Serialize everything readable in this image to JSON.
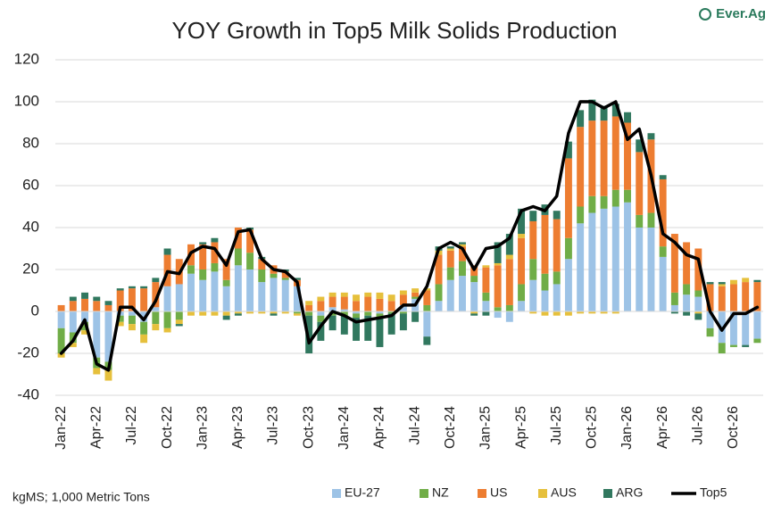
{
  "chart_data": {
    "type": "bar",
    "stacked": true,
    "title": "YOY Growth in Top5 Milk Solids Production",
    "logo": "Ever.Ag",
    "note": "kgMS; 1,000 Metric Tons",
    "categories": [
      "Jan-22",
      null,
      null,
      "Apr-22",
      null,
      null,
      "Jul-22",
      null,
      null,
      "Oct-22",
      null,
      null,
      "Jan-23",
      null,
      null,
      "Apr-23",
      null,
      null,
      "Jul-23",
      null,
      null,
      "Oct-23",
      null,
      null,
      "Jan-24",
      null,
      null,
      "Apr-24",
      null,
      null,
      "Jul-24",
      null,
      null,
      "Oct-24",
      null,
      null,
      "Jan-25",
      null,
      null,
      "Apr-25",
      null,
      null,
      "Jul-25",
      null,
      null,
      "Oct-25",
      null,
      null,
      "Jan-26",
      null,
      null,
      "Apr-26",
      null,
      null,
      "Jul-26",
      null,
      null,
      "Oct-26",
      null,
      null
    ],
    "ylim": [
      -40,
      120
    ],
    "yticks": [
      -40,
      -20,
      0,
      20,
      40,
      60,
      80,
      100,
      120
    ],
    "grid": true,
    "series": [
      {
        "name": "EU-27",
        "color": "#9dc3e6",
        "values": [
          -8,
          -10,
          -5,
          -22,
          -24,
          -2,
          -2,
          -5,
          2,
          12,
          13,
          18,
          15,
          19,
          12,
          22,
          20,
          14,
          16,
          15,
          12,
          0,
          -2,
          2,
          1,
          -1,
          0,
          -1,
          0,
          3,
          6,
          -12,
          5,
          15,
          17,
          14,
          5,
          -3,
          -5,
          5,
          15,
          10,
          13,
          25,
          42,
          47,
          49,
          50,
          52,
          40,
          40,
          26,
          3,
          8,
          7,
          -8,
          -15,
          -16,
          -16,
          -13
        ]
      },
      {
        "name": "NZ",
        "color": "#70ad47",
        "values": [
          -12,
          -5,
          -4,
          -5,
          -4,
          -3,
          -4,
          -6,
          -6,
          -8,
          -4,
          4,
          5,
          4,
          3,
          8,
          8,
          6,
          2,
          1,
          -1,
          -2,
          -3,
          -2,
          -2,
          -2,
          -2,
          -2,
          -1,
          -1,
          1,
          3,
          8,
          6,
          7,
          3,
          4,
          2,
          3,
          8,
          10,
          8,
          6,
          10,
          8,
          8,
          6,
          8,
          6,
          6,
          7,
          5,
          6,
          5,
          3,
          -4,
          -5,
          -1,
          0,
          -2
        ]
      },
      {
        "name": "US",
        "color": "#ed7d31",
        "values": [
          3,
          5,
          6,
          5,
          3,
          10,
          11,
          11,
          12,
          15,
          12,
          10,
          12,
          10,
          10,
          10,
          11,
          5,
          4,
          3,
          3,
          3,
          5,
          5,
          6,
          5,
          7,
          6,
          5,
          5,
          2,
          7,
          14,
          8,
          7,
          5,
          12,
          20,
          22,
          22,
          18,
          28,
          25,
          38,
          38,
          36,
          36,
          35,
          32,
          30,
          35,
          32,
          28,
          20,
          20,
          13,
          12,
          13,
          14,
          14
        ]
      },
      {
        "name": "AUS",
        "color": "#e6c03c",
        "values": [
          -2,
          -2,
          -2,
          -3,
          -5,
          -2,
          -3,
          -4,
          -3,
          -2,
          -2,
          -2,
          -2,
          -2,
          -2,
          -1,
          -1,
          -1,
          -1,
          -1,
          -1,
          2,
          2,
          2,
          2,
          3,
          2,
          3,
          3,
          2,
          2,
          1,
          2,
          1,
          1,
          -1,
          1,
          1,
          2,
          2,
          -1,
          -2,
          -2,
          -2,
          -1,
          -1,
          -1,
          -1,
          0,
          0,
          0,
          0,
          0,
          0,
          -1,
          0,
          1,
          2,
          2,
          0
        ]
      },
      {
        "name": "ARG",
        "color": "#31785f",
        "values": [
          0,
          2,
          3,
          2,
          2,
          1,
          1,
          1,
          2,
          3,
          -1,
          0,
          1,
          2,
          -2,
          -1,
          1,
          1,
          -1,
          1,
          1,
          -18,
          -9,
          -7,
          -9,
          -11,
          -12,
          -14,
          -10,
          -8,
          -5,
          -4,
          2,
          1,
          1,
          -1,
          -2,
          10,
          10,
          12,
          5,
          5,
          4,
          8,
          8,
          10,
          7,
          6,
          5,
          6,
          3,
          2,
          -1,
          -2,
          -3,
          1,
          1,
          0,
          -1,
          1
        ]
      },
      {
        "name": "Top5",
        "type": "line",
        "color": "#000000",
        "values": [
          -20,
          -14,
          -4,
          -25,
          -28,
          2,
          2,
          -4,
          5,
          19,
          18,
          28,
          31,
          30,
          22,
          38,
          39,
          25,
          20,
          19,
          14,
          -15,
          -7,
          0,
          -2,
          -5,
          -4,
          -3,
          -2,
          3,
          3,
          12,
          30,
          33,
          30,
          20,
          30,
          31,
          35,
          48,
          50,
          48,
          55,
          85,
          100,
          100,
          97,
          100,
          82,
          87,
          65,
          37,
          33,
          27,
          25,
          0,
          -9,
          -1,
          -1,
          2
        ]
      }
    ]
  }
}
